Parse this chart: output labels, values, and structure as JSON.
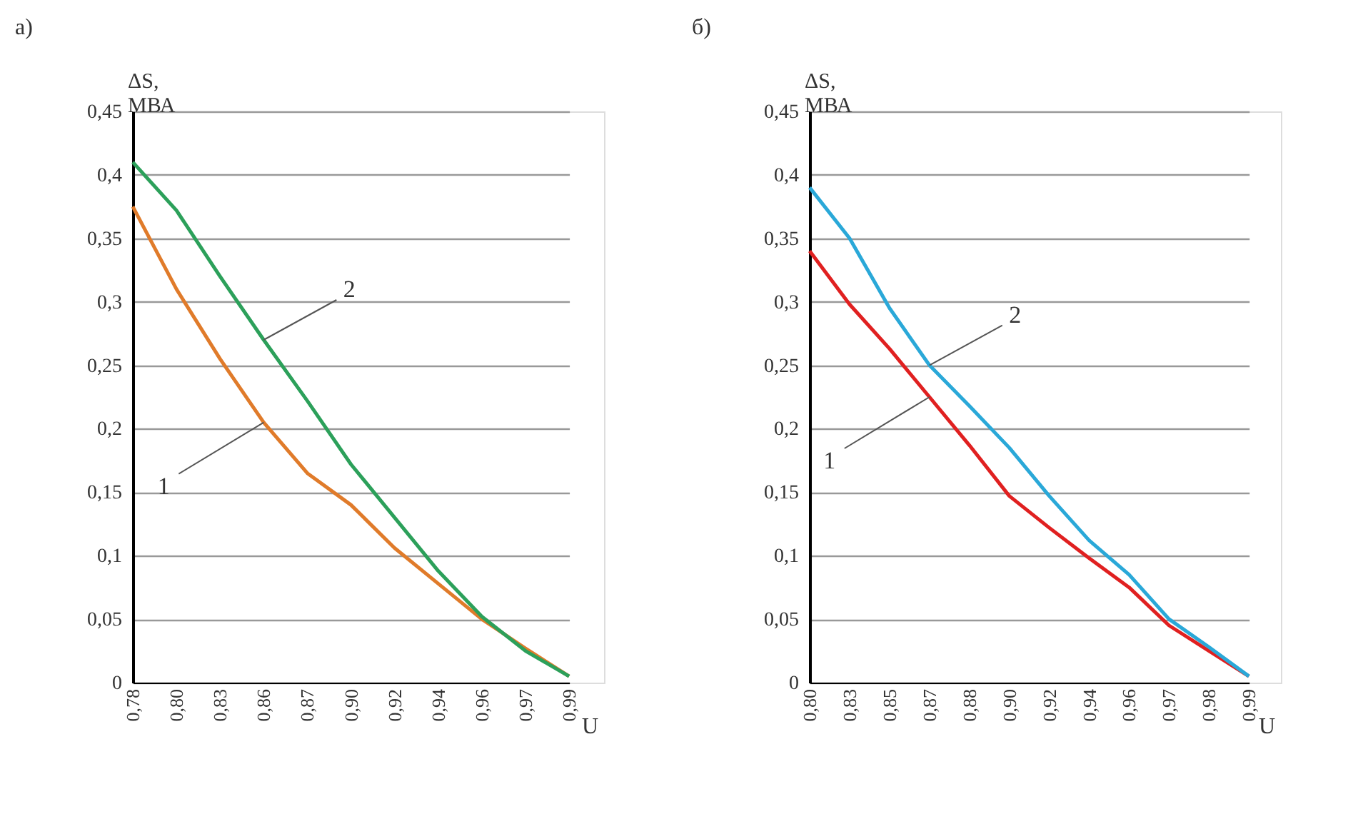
{
  "chart_data": [
    {
      "type": "line",
      "title": "а)",
      "ylabel": "ΔS, МВА",
      "xlabel": "U",
      "categories": [
        "0,78",
        "0,80",
        "0,83",
        "0,86",
        "0,87",
        "0,90",
        "0,92",
        "0,94",
        "0,96",
        "0,97",
        "0,99"
      ],
      "series": [
        {
          "color": "#e07b2a",
          "values": [
            0.375,
            0.31,
            0.255,
            0.205,
            0.165,
            0.14,
            0.106,
            0.078,
            0.05,
            0.027,
            0.005
          ]
        },
        {
          "color": "#2ca05a",
          "values": [
            0.41,
            0.372,
            0.32,
            0.27,
            0.222,
            0.172,
            0.13,
            0.088,
            0.052,
            0.025,
            0.005
          ]
        }
      ],
      "ylim": [
        0,
        0.45
      ],
      "yticks": [
        {
          "value": 0,
          "label": "0"
        },
        {
          "value": 0.05,
          "label": "0,05"
        },
        {
          "value": 0.1,
          "label": "0,1"
        },
        {
          "value": 0.15,
          "label": "0,15"
        },
        {
          "value": 0.2,
          "label": "0,2"
        },
        {
          "value": 0.25,
          "label": "0,25"
        },
        {
          "value": 0.3,
          "label": "0,3"
        },
        {
          "value": 0.35,
          "label": "0,35"
        },
        {
          "value": 0.4,
          "label": "0,4"
        },
        {
          "value": 0.45,
          "label": "0,45"
        }
      ],
      "annotations": [
        {
          "text": "1",
          "x": "0,86",
          "y": 0.205
        },
        {
          "text": "2",
          "x": "0,86",
          "y": 0.27
        }
      ],
      "grid": "y",
      "legend": false,
      "marker": "none",
      "line_style": "solid"
    },
    {
      "type": "line",
      "title": "б)",
      "ylabel": "ΔS, МВА",
      "xlabel": "U",
      "categories": [
        "0,80",
        "0,83",
        "0,85",
        "0,87",
        "0,88",
        "0,90",
        "0,92",
        "0,94",
        "0,96",
        "0,97",
        "0,98",
        "0,99"
      ],
      "series": [
        {
          "color": "#e02020",
          "values": [
            0.34,
            0.298,
            0.263,
            0.225,
            0.187,
            0.147,
            0.122,
            0.098,
            0.075,
            0.045,
            0.025,
            0.005
          ]
        },
        {
          "color": "#2aa8d8",
          "values": [
            0.39,
            0.35,
            0.295,
            0.25,
            0.218,
            0.185,
            0.147,
            0.112,
            0.085,
            0.05,
            0.028,
            0.005
          ]
        }
      ],
      "ylim": [
        0,
        0.45
      ],
      "yticks": [
        {
          "value": 0,
          "label": "0"
        },
        {
          "value": 0.05,
          "label": "0,05"
        },
        {
          "value": 0.1,
          "label": "0,1"
        },
        {
          "value": 0.15,
          "label": "0,15"
        },
        {
          "value": 0.2,
          "label": "0,2"
        },
        {
          "value": 0.25,
          "label": "0,25"
        },
        {
          "value": 0.3,
          "label": "0,3"
        },
        {
          "value": 0.35,
          "label": "0,35"
        },
        {
          "value": 0.4,
          "label": "0,4"
        },
        {
          "value": 0.45,
          "label": "0,45"
        }
      ],
      "annotations": [
        {
          "text": "1",
          "x": "0,87",
          "y": 0.225
        },
        {
          "text": "2",
          "x": "0,87",
          "y": 0.25
        }
      ],
      "grid": "y",
      "legend": false,
      "marker": "none",
      "line_style": "solid"
    }
  ]
}
